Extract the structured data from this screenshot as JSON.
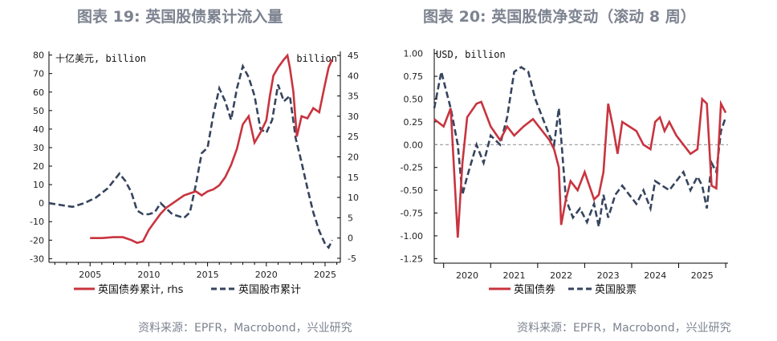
{
  "left_title": "图表 19: 英国股债累计流入量",
  "right_title": "图表 20: 英国股债净变动（滚动 8 周）",
  "left_source": "资料来源：EPFR，Macrobond，兴业研究",
  "right_source": "资料来源：EPFR，Macrobond，兴业研究",
  "colors": {
    "bond": "#c8343f",
    "equity": "#36445e",
    "zero_line": "#999999"
  },
  "chart_data": [
    {
      "type": "line",
      "left_unit_label": "十亿美元, billion",
      "right_unit_label": "billion",
      "xlim": [
        2001.5,
        2026.3
      ],
      "x_ticks": [
        2005,
        2010,
        2015,
        2020,
        2025
      ],
      "x_tick_labels": [
        "2005",
        "2010",
        "2015",
        "2020",
        "2025"
      ],
      "ylim_left": [
        -32,
        82
      ],
      "yticks_left": [
        80,
        70,
        60,
        50,
        40,
        30,
        20,
        10,
        0,
        -10,
        -20,
        -30
      ],
      "ylim_right": [
        -6,
        46
      ],
      "yticks_right": [
        45,
        40,
        35,
        30,
        25,
        20,
        15,
        10,
        5,
        0,
        -5
      ],
      "series": [
        {
          "name": "英国债券累计, rhs",
          "axis": "right",
          "style": "solid",
          "x": [
            2005.0,
            2006.0,
            2007.0,
            2007.8,
            2008.5,
            2009.0,
            2009.5,
            2010.0,
            2010.5,
            2011.0,
            2011.5,
            2012.0,
            2012.5,
            2013.0,
            2013.5,
            2014.0,
            2014.5,
            2015.0,
            2015.5,
            2016.0,
            2016.5,
            2017.0,
            2017.5,
            2018.0,
            2018.5,
            2019.0,
            2019.5,
            2020.0,
            2020.3,
            2020.6,
            2021.0,
            2021.5,
            2021.8,
            2022.0,
            2022.3,
            2022.6,
            2023.0,
            2023.5,
            2024.0,
            2024.5,
            2025.0,
            2025.3,
            2025.6
          ],
          "values": [
            0.0,
            0.0,
            0.2,
            0.2,
            -0.5,
            -1.2,
            -0.8,
            2.0,
            4.0,
            6.0,
            7.5,
            8.5,
            9.5,
            10.5,
            11.0,
            11.5,
            10.5,
            11.5,
            12.0,
            13.0,
            15.0,
            18.0,
            22.0,
            28.0,
            30.0,
            23.5,
            26.0,
            29.0,
            35.0,
            40.0,
            42.0,
            44.0,
            45.0,
            42.0,
            36.0,
            25.0,
            30.0,
            29.5,
            32.0,
            31.0,
            38.0,
            42.0,
            44.0
          ]
        },
        {
          "name": "英国股市累计",
          "axis": "left",
          "style": "dashed",
          "x": [
            2001.5,
            2002.5,
            2003.5,
            2004.5,
            2005.5,
            2006.5,
            2007.5,
            2008.0,
            2008.5,
            2009.0,
            2009.5,
            2010.0,
            2010.5,
            2011.0,
            2011.5,
            2012.0,
            2012.5,
            2013.0,
            2013.5,
            2014.0,
            2014.5,
            2015.0,
            2015.5,
            2016.0,
            2016.5,
            2017.0,
            2017.5,
            2018.0,
            2018.5,
            2019.0,
            2019.5,
            2020.0,
            2020.5,
            2021.0,
            2021.5,
            2022.0,
            2022.5,
            2023.0,
            2023.5,
            2024.0,
            2024.5,
            2025.0,
            2025.3,
            2025.6
          ],
          "values": [
            0,
            -1,
            -2,
            0,
            3,
            8,
            16,
            12,
            6,
            -4,
            -6,
            -6,
            -5,
            0,
            -3,
            -6,
            -7,
            -8,
            -5,
            10,
            27,
            30,
            48,
            62,
            55,
            45,
            62,
            74,
            68,
            58,
            40,
            38,
            45,
            64,
            55,
            58,
            35,
            22,
            8,
            -5,
            -15,
            -22,
            -24,
            -20
          ]
        }
      ]
    },
    {
      "type": "line",
      "unit_label": "USD, billion",
      "xlim": [
        2019.3,
        2025.55
      ],
      "x_ticks": [
        2020,
        2021,
        2022,
        2023,
        2024,
        2025
      ],
      "x_tick_labels": [
        "2020",
        "2021",
        "2022",
        "2023",
        "2024",
        "2025"
      ],
      "ylim": [
        -1.3,
        1.05
      ],
      "yticks": [
        1.0,
        0.75,
        0.5,
        0.25,
        0.0,
        -0.25,
        -0.5,
        -0.75,
        -1.0,
        -1.25
      ],
      "ytick_labels": [
        "1.00",
        "0.75",
        "0.50",
        "0.25",
        "0.00",
        "-0.25",
        "-0.50",
        "-0.75",
        "-1.00",
        "-1.25"
      ],
      "series": [
        {
          "name": "英国债券",
          "style": "solid",
          "x": [
            2019.3,
            2019.5,
            2019.65,
            2019.8,
            2019.9,
            2020.0,
            2020.2,
            2020.3,
            2020.5,
            2020.7,
            2020.85,
            2021.0,
            2021.2,
            2021.4,
            2021.6,
            2021.75,
            2021.85,
            2021.95,
            2022.0,
            2022.1,
            2022.2,
            2022.35,
            2022.5,
            2022.7,
            2022.8,
            2022.9,
            2023.0,
            2023.1,
            2023.2,
            2023.3,
            2023.45,
            2023.6,
            2023.75,
            2023.9,
            2024.0,
            2024.1,
            2024.2,
            2024.3,
            2024.45,
            2024.6,
            2024.75,
            2024.9,
            2025.0,
            2025.1,
            2025.2,
            2025.3,
            2025.4,
            2025.5
          ],
          "values": [
            0.28,
            0.2,
            0.4,
            -1.02,
            -0.2,
            0.3,
            0.45,
            0.47,
            0.2,
            0.05,
            0.2,
            0.1,
            0.2,
            0.28,
            0.15,
            0.05,
            -0.05,
            -0.25,
            -0.88,
            -0.6,
            -0.4,
            -0.5,
            -0.3,
            -0.6,
            -0.55,
            -0.3,
            0.45,
            0.2,
            -0.1,
            0.25,
            0.2,
            0.15,
            0.0,
            -0.05,
            0.25,
            0.3,
            0.15,
            0.25,
            0.1,
            0.0,
            -0.1,
            -0.05,
            0.5,
            0.45,
            -0.45,
            -0.48,
            0.45,
            0.35
          ]
        },
        {
          "name": "英国股票",
          "style": "dashed",
          "x": [
            2019.3,
            2019.45,
            2019.55,
            2019.65,
            2019.8,
            2019.9,
            2020.0,
            2020.2,
            2020.35,
            2020.5,
            2020.7,
            2020.85,
            2021.0,
            2021.15,
            2021.3,
            2021.45,
            2021.6,
            2021.75,
            2021.85,
            2021.95,
            2022.1,
            2022.25,
            2022.4,
            2022.55,
            2022.7,
            2022.8,
            2022.9,
            2023.0,
            2023.15,
            2023.3,
            2023.45,
            2023.6,
            2023.75,
            2023.9,
            2024.0,
            2024.15,
            2024.3,
            2024.45,
            2024.6,
            2024.75,
            2024.9,
            2025.0,
            2025.1,
            2025.2,
            2025.3,
            2025.4,
            2025.5
          ],
          "values": [
            0.4,
            0.8,
            0.6,
            0.4,
            0.0,
            -0.55,
            -0.35,
            0.0,
            -0.2,
            0.1,
            0.0,
            0.3,
            0.8,
            0.85,
            0.8,
            0.5,
            0.3,
            0.1,
            0.0,
            0.4,
            -0.6,
            -0.8,
            -0.7,
            -0.85,
            -0.65,
            -0.9,
            -0.55,
            -0.8,
            -0.55,
            -0.45,
            -0.55,
            -0.65,
            -0.5,
            -0.7,
            -0.4,
            -0.45,
            -0.5,
            -0.4,
            -0.3,
            -0.5,
            -0.35,
            -0.45,
            -0.7,
            -0.2,
            -0.3,
            0.15,
            0.3
          ]
        }
      ]
    }
  ]
}
